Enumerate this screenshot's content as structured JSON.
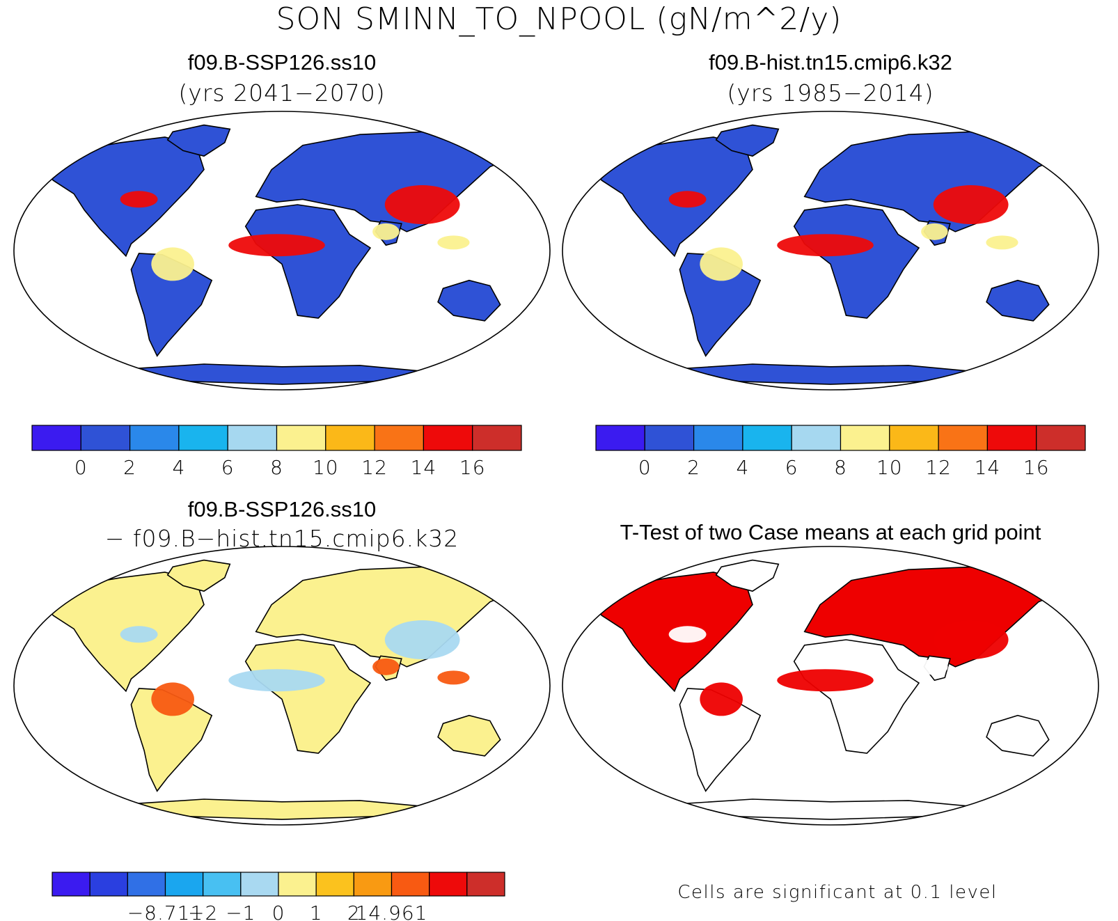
{
  "title": "SON SMINN_TO_NPOOL (gN/m^2/y)",
  "panels": [
    {
      "case": "f09.B-SSP126.ss10",
      "period": "(yrs 2041−2070)",
      "type": "field"
    },
    {
      "case": "f09.B-hist.tn15.cmip6.k32",
      "period": "(yrs 1985−2014)",
      "type": "field"
    },
    {
      "case": "f09.B-SSP126.ss10",
      "period": "− f09.B−hist.tn15.cmip6.k32",
      "type": "difference"
    },
    {
      "case": "T-Test of two Case means at each grid point",
      "type": "significance"
    }
  ],
  "colorbars": {
    "absolute": {
      "colors": [
        "#3b1bf0",
        "#2f52d6",
        "#2a88ea",
        "#19b4ee",
        "#a6d8f0",
        "#fbf18f",
        "#fbb818",
        "#f97316",
        "#ee0a0a",
        "#cd2e2a"
      ],
      "ticks": [
        "0",
        "2",
        "4",
        "6",
        "8",
        "10",
        "12",
        "14",
        "16"
      ]
    },
    "difference": {
      "colors": [
        "#3b1bf0",
        "#2a3fe0",
        "#3070e6",
        "#1aa6ef",
        "#48c0f2",
        "#a9d9f1",
        "#fbf18f",
        "#fbc21e",
        "#f99a12",
        "#f85a12",
        "#ee0a0a",
        "#cd2e2a"
      ],
      "ticks": [
        "−8.711",
        "−2",
        "−1",
        "0",
        "1",
        "2",
        "14.961"
      ]
    }
  },
  "significance_note": "Cells are significant at 0.1 level",
  "map_colors": {
    "ocean": "#ffffff",
    "coast": "#000000",
    "significant": "#ee0000"
  }
}
